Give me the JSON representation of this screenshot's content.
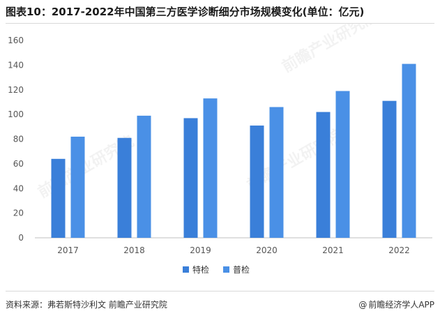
{
  "title": "图表10：2017-2022年中国第三方医学诊断细分市场规模变化(单位：亿元)",
  "source": "资料来源：弗若斯特沙利文 前瞻产业研究院",
  "brand": "前瞻经济学人APP",
  "brand_icon": "at-sign-icon",
  "watermark": "前瞻产业研究院",
  "colors": {
    "series1": "#3a7fd9",
    "series2": "#4a90e6",
    "axis": "#bfbfbf"
  },
  "chart_data": {
    "type": "bar",
    "categories": [
      "2017",
      "2018",
      "2019",
      "2020",
      "2021",
      "2022"
    ],
    "series": [
      {
        "name": "特检",
        "values": [
          64,
          81,
          97,
          91,
          102,
          111
        ]
      },
      {
        "name": "普检",
        "values": [
          82,
          99,
          113,
          106,
          119,
          141
        ]
      }
    ],
    "ylim": [
      0,
      160
    ],
    "yticks": [
      0,
      20,
      40,
      60,
      80,
      100,
      120,
      140,
      160
    ],
    "grid": false,
    "legend": "bottom-center",
    "xlabel": "",
    "ylabel": ""
  }
}
